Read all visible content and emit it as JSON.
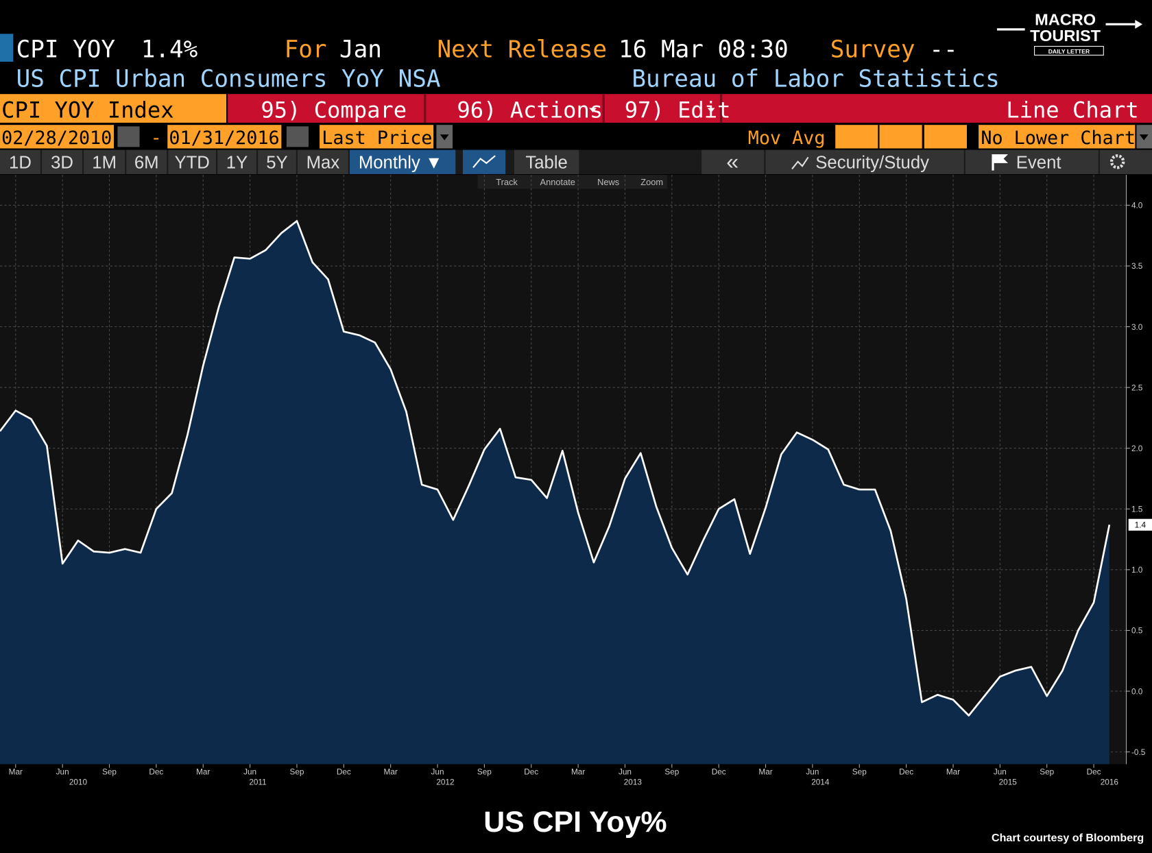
{
  "header": {
    "ticker": "CPI YOY",
    "last": "1.4%",
    "for_label": "For",
    "for_value": "Jan",
    "next_label": "Next Release",
    "next_value": "16 Mar 08:30",
    "survey_label": "Survey",
    "survey_value": "--",
    "description": "US CPI Urban Consumers YoY NSA",
    "source": "Bureau of Labor Statistics"
  },
  "logo": {
    "line1": "MACRO",
    "line2": "TOURIST",
    "line3": "DAILY LETTER"
  },
  "menu": {
    "security": "CPI YOY Index",
    "items": [
      "95) Compare",
      "96) Actions",
      "97) Edit"
    ],
    "chart_type": "Line Chart"
  },
  "settings": {
    "start": "02/28/2010",
    "separator": "-",
    "end": "01/31/2016",
    "field": "Last Price",
    "mov_avg": "Mov Avg",
    "lower": "No Lower Chart"
  },
  "toolbar": {
    "periods": [
      "1D",
      "3D",
      "1M",
      "6M",
      "YTD",
      "1Y",
      "5Y",
      "Max"
    ],
    "frequency": "Monthly ▼",
    "table": "Table",
    "back": "«",
    "study": "Security/Study",
    "event": "Event"
  },
  "tools": [
    "Track",
    "Annotate",
    "News",
    "Zoom"
  ],
  "chart_data": {
    "type": "area",
    "title": "US CPI Yoy%",
    "x": [
      "2010-02",
      "2010-03",
      "2010-04",
      "2010-05",
      "2010-06",
      "2010-07",
      "2010-08",
      "2010-09",
      "2010-10",
      "2010-11",
      "2010-12",
      "2011-01",
      "2011-02",
      "2011-03",
      "2011-04",
      "2011-05",
      "2011-06",
      "2011-07",
      "2011-08",
      "2011-09",
      "2011-10",
      "2011-11",
      "2011-12",
      "2012-01",
      "2012-02",
      "2012-03",
      "2012-04",
      "2012-05",
      "2012-06",
      "2012-07",
      "2012-08",
      "2012-09",
      "2012-10",
      "2012-11",
      "2012-12",
      "2013-01",
      "2013-02",
      "2013-03",
      "2013-04",
      "2013-05",
      "2013-06",
      "2013-07",
      "2013-08",
      "2013-09",
      "2013-10",
      "2013-11",
      "2013-12",
      "2014-01",
      "2014-02",
      "2014-03",
      "2014-04",
      "2014-05",
      "2014-06",
      "2014-07",
      "2014-08",
      "2014-09",
      "2014-10",
      "2014-11",
      "2014-12",
      "2015-01",
      "2015-02",
      "2015-03",
      "2015-04",
      "2015-05",
      "2015-06",
      "2015-07",
      "2015-08",
      "2015-09",
      "2015-10",
      "2015-11",
      "2015-12",
      "2016-01"
    ],
    "series": [
      {
        "name": "CPI YOY Index",
        "color": "#ffffff",
        "fill": "#0e2a4b",
        "values": [
          2.14,
          2.31,
          2.24,
          2.02,
          1.05,
          1.24,
          1.15,
          1.14,
          1.17,
          1.14,
          1.5,
          1.63,
          2.11,
          2.68,
          3.16,
          3.57,
          3.56,
          3.63,
          3.77,
          3.87,
          3.53,
          3.39,
          2.96,
          2.93,
          2.87,
          2.65,
          2.3,
          1.7,
          1.66,
          1.41,
          1.69,
          1.99,
          2.16,
          1.76,
          1.74,
          1.59,
          1.98,
          1.47,
          1.06,
          1.36,
          1.75,
          1.96,
          1.52,
          1.18,
          0.96,
          1.24,
          1.5,
          1.58,
          1.13,
          1.51,
          1.95,
          2.13,
          2.07,
          1.99,
          1.7,
          1.66,
          1.66,
          1.32,
          0.76,
          -0.09,
          -0.03,
          -0.07,
          -0.2,
          -0.04,
          0.12,
          0.17,
          0.2,
          -0.04,
          0.17,
          0.5,
          0.73,
          1.37
        ]
      }
    ],
    "last_value_label": "1.4",
    "xticks": [
      {
        "value": "2010-03",
        "label": "Mar"
      },
      {
        "value": "2010-06",
        "label": "Jun"
      },
      {
        "value": "2010-09",
        "label": "Sep"
      },
      {
        "value": "2010-12",
        "label": "Dec"
      },
      {
        "value": "2011-03",
        "label": "Mar"
      },
      {
        "value": "2011-06",
        "label": "Jun"
      },
      {
        "value": "2011-09",
        "label": "Sep"
      },
      {
        "value": "2011-12",
        "label": "Dec"
      },
      {
        "value": "2012-03",
        "label": "Mar"
      },
      {
        "value": "2012-06",
        "label": "Jun"
      },
      {
        "value": "2012-09",
        "label": "Sep"
      },
      {
        "value": "2012-12",
        "label": "Dec"
      },
      {
        "value": "2013-03",
        "label": "Mar"
      },
      {
        "value": "2013-06",
        "label": "Jun"
      },
      {
        "value": "2013-09",
        "label": "Sep"
      },
      {
        "value": "2013-12",
        "label": "Dec"
      },
      {
        "value": "2014-03",
        "label": "Mar"
      },
      {
        "value": "2014-06",
        "label": "Jun"
      },
      {
        "value": "2014-09",
        "label": "Sep"
      },
      {
        "value": "2014-12",
        "label": "Dec"
      },
      {
        "value": "2015-03",
        "label": "Mar"
      },
      {
        "value": "2015-06",
        "label": "Jun"
      },
      {
        "value": "2015-09",
        "label": "Sep"
      },
      {
        "value": "2015-12",
        "label": "Dec"
      }
    ],
    "years": [
      "2010",
      "2011",
      "2012",
      "2013",
      "2014",
      "2015",
      "2016"
    ],
    "ylim": [
      -0.6,
      4.25
    ],
    "yticks": [
      -0.5,
      {
        "value": 0,
        "label": "0.0"
      },
      0.5,
      {
        "value": 1,
        "label": "1.0"
      },
      1.5,
      {
        "value": 2,
        "label": "2.0"
      },
      2.5,
      {
        "value": 3,
        "label": "3.0"
      },
      3.5,
      {
        "value": 4,
        "label": "4.0"
      }
    ],
    "grid": true
  },
  "footer": {
    "credit": "Chart courtesy of Bloomberg"
  }
}
